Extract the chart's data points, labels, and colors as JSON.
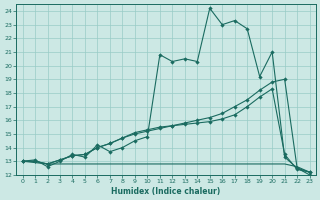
{
  "xlabel": "Humidex (Indice chaleur)",
  "ylabel": "",
  "xlim": [
    -0.5,
    23.5
  ],
  "ylim": [
    12,
    24.5
  ],
  "xticks": [
    0,
    1,
    2,
    3,
    4,
    5,
    6,
    7,
    8,
    9,
    10,
    11,
    12,
    13,
    14,
    15,
    16,
    17,
    18,
    19,
    20,
    21,
    22,
    23
  ],
  "yticks": [
    12,
    13,
    14,
    15,
    16,
    17,
    18,
    19,
    20,
    21,
    22,
    23,
    24
  ],
  "bg_color": "#cce8e4",
  "grid_color": "#99ccc6",
  "line_color": "#1a6b60",
  "main_line": [
    13.0,
    13.1,
    12.6,
    13.0,
    13.5,
    13.3,
    14.2,
    13.7,
    14.0,
    14.5,
    14.8,
    20.8,
    20.3,
    20.5,
    20.3,
    24.2,
    23.0,
    23.3,
    22.7,
    19.2,
    21.0,
    13.3,
    12.5,
    12.0
  ],
  "diag1_line": [
    13.0,
    13.0,
    12.8,
    13.1,
    13.4,
    13.5,
    14.0,
    14.3,
    14.7,
    15.1,
    15.3,
    15.5,
    15.6,
    15.8,
    16.0,
    16.2,
    16.5,
    17.0,
    17.5,
    18.2,
    18.8,
    19.0,
    12.5,
    12.2
  ],
  "diag2_line": [
    13.0,
    13.0,
    12.8,
    13.1,
    13.4,
    13.5,
    14.0,
    14.3,
    14.7,
    15.0,
    15.2,
    15.4,
    15.6,
    15.7,
    15.8,
    15.9,
    16.1,
    16.4,
    17.0,
    17.7,
    18.3,
    13.5,
    12.4,
    12.2
  ],
  "flat_line": [
    13.0,
    12.9,
    12.8,
    12.8,
    12.8,
    12.8,
    12.8,
    12.8,
    12.8,
    12.8,
    12.8,
    12.8,
    12.8,
    12.8,
    12.8,
    12.8,
    12.8,
    12.8,
    12.8,
    12.8,
    12.8,
    12.8,
    12.6,
    12.2
  ]
}
